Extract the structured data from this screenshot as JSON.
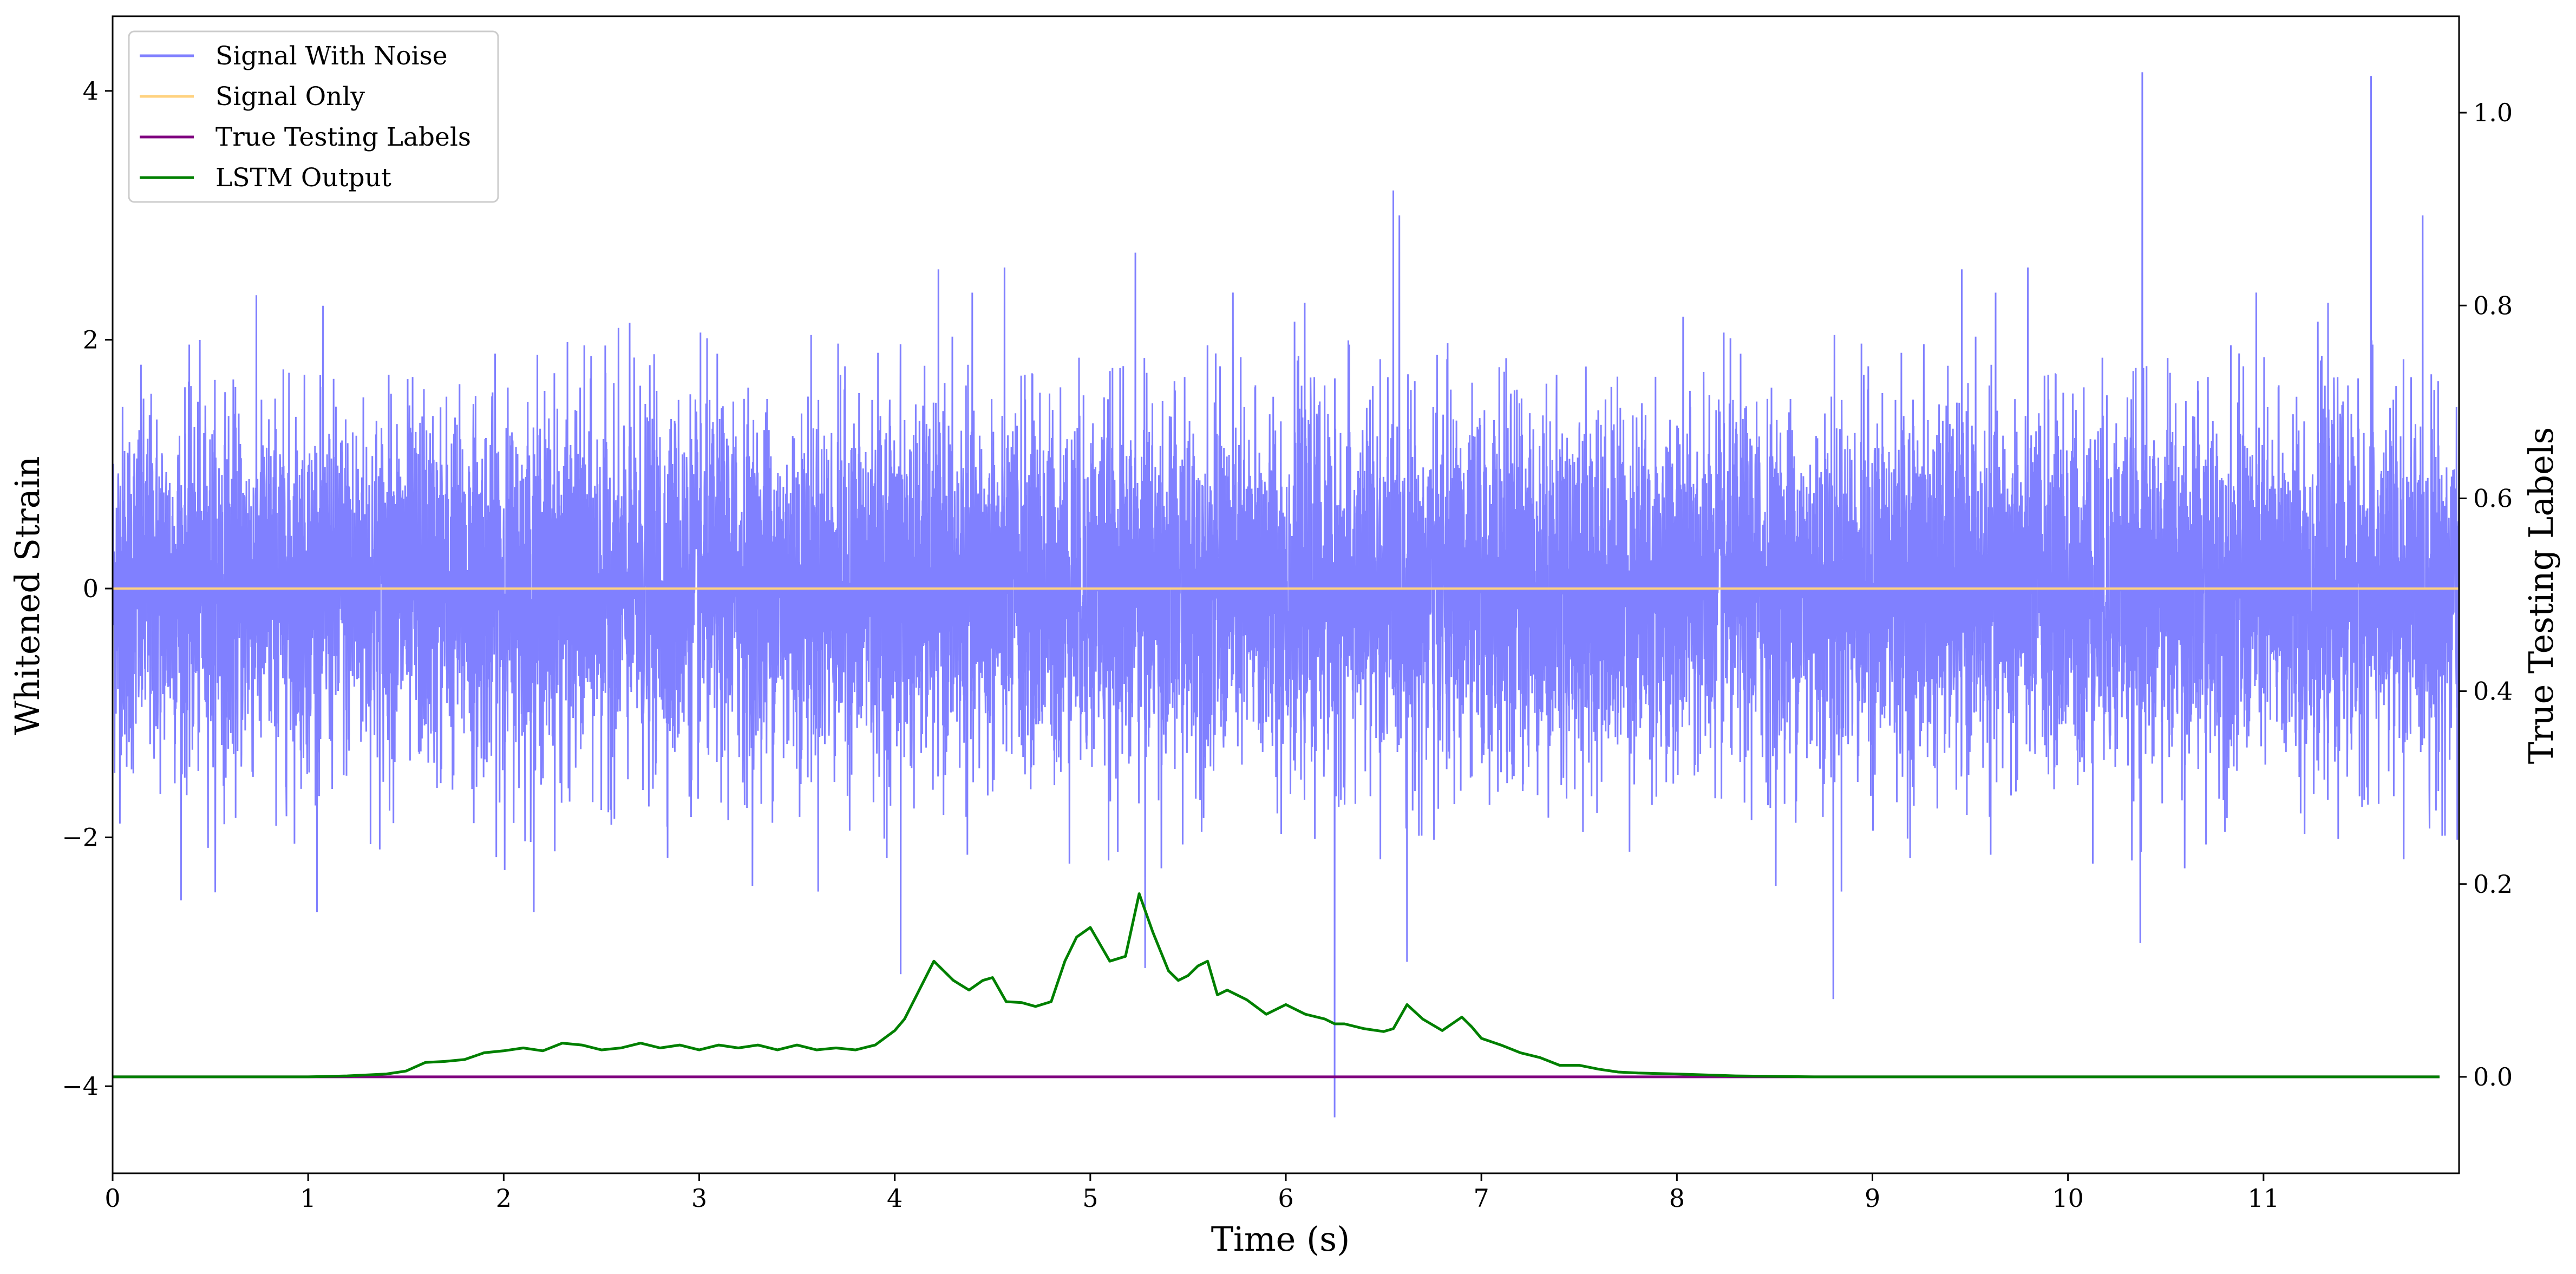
{
  "chart_data": {
    "type": "line",
    "xlabel": "Time (s)",
    "ylabel_left": "Whitened Strain",
    "ylabel_right": "True Testing Labels",
    "xlim": [
      0,
      12
    ],
    "ylim_left": [
      -4.7,
      4.6
    ],
    "ylim_right": [
      -0.1,
      1.1
    ],
    "x_ticks": [
      0,
      1,
      2,
      3,
      4,
      5,
      6,
      7,
      8,
      9,
      10,
      11
    ],
    "y_ticks_left": [
      4,
      2,
      0,
      -2,
      -4
    ],
    "y_ticks_right": [
      1.0,
      0.8,
      0.6,
      0.4,
      0.2,
      0.0
    ],
    "legend_position": "top-left",
    "grid": false,
    "legend": [
      {
        "name": "Signal With Noise",
        "color": "#8080ff"
      },
      {
        "name": "Signal Only",
        "color": "#ffd27f"
      },
      {
        "name": "True Testing Labels",
        "color": "#800080"
      },
      {
        "name": "LSTM Output",
        "color": "#008000"
      }
    ],
    "series": [
      {
        "name": "Signal With Noise",
        "axis": "left",
        "color": "#8080ff",
        "description_stats": {
          "mean": 0,
          "std": 0.72,
          "x_start": 0,
          "x_end": 12
        },
        "notable_extremes": [
          {
            "x": 10.38,
            "y": 4.15
          },
          {
            "x": 11.55,
            "y": 4.12
          },
          {
            "x": 6.55,
            "y": 3.2
          },
          {
            "x": 5.23,
            "y": 2.7
          },
          {
            "x": 6.25,
            "y": -4.25
          },
          {
            "x": 8.8,
            "y": -3.3
          },
          {
            "x": 4.03,
            "y": -3.1
          },
          {
            "x": 5.28,
            "y": -3.05
          },
          {
            "x": 6.62,
            "y": -3.0
          },
          {
            "x": 10.37,
            "y": -2.85
          }
        ]
      },
      {
        "name": "Signal Only",
        "axis": "left",
        "color": "#ffd27f",
        "x": [
          0,
          12
        ],
        "values": [
          0,
          0
        ]
      },
      {
        "name": "True Testing Labels",
        "axis": "right",
        "color": "#800080",
        "x": [
          0,
          11.9
        ],
        "values": [
          0,
          0
        ]
      },
      {
        "name": "LSTM Output",
        "axis": "right",
        "color": "#008000",
        "x": [
          0,
          0.8,
          1.0,
          1.2,
          1.4,
          1.5,
          1.6,
          1.7,
          1.8,
          1.9,
          2.0,
          2.1,
          2.2,
          2.3,
          2.4,
          2.5,
          2.6,
          2.7,
          2.8,
          2.9,
          3.0,
          3.1,
          3.2,
          3.3,
          3.4,
          3.5,
          3.6,
          3.7,
          3.8,
          3.9,
          4.0,
          4.05,
          4.1,
          4.2,
          4.3,
          4.38,
          4.45,
          4.5,
          4.57,
          4.65,
          4.72,
          4.8,
          4.87,
          4.93,
          5.0,
          5.1,
          5.18,
          5.25,
          5.32,
          5.4,
          5.45,
          5.5,
          5.55,
          5.6,
          5.65,
          5.7,
          5.8,
          5.9,
          6.0,
          6.1,
          6.2,
          6.25,
          6.3,
          6.4,
          6.5,
          6.55,
          6.62,
          6.7,
          6.8,
          6.9,
          6.95,
          7.0,
          7.1,
          7.2,
          7.3,
          7.4,
          7.5,
          7.6,
          7.7,
          7.8,
          8.0,
          8.3,
          8.7,
          9.0,
          10.0,
          11.0,
          11.9
        ],
        "values": [
          0.0,
          0.0,
          0.0,
          0.001,
          0.003,
          0.006,
          0.015,
          0.016,
          0.018,
          0.025,
          0.027,
          0.03,
          0.027,
          0.035,
          0.033,
          0.028,
          0.03,
          0.035,
          0.03,
          0.033,
          0.028,
          0.033,
          0.03,
          0.033,
          0.028,
          0.033,
          0.028,
          0.03,
          0.028,
          0.033,
          0.048,
          0.06,
          0.08,
          0.12,
          0.1,
          0.09,
          0.1,
          0.103,
          0.078,
          0.077,
          0.073,
          0.078,
          0.12,
          0.145,
          0.155,
          0.12,
          0.125,
          0.19,
          0.15,
          0.11,
          0.1,
          0.105,
          0.115,
          0.12,
          0.085,
          0.09,
          0.08,
          0.065,
          0.075,
          0.065,
          0.06,
          0.055,
          0.055,
          0.05,
          0.047,
          0.05,
          0.075,
          0.06,
          0.048,
          0.062,
          0.052,
          0.04,
          0.033,
          0.025,
          0.02,
          0.012,
          0.012,
          0.008,
          0.005,
          0.004,
          0.003,
          0.001,
          0.0,
          0.0,
          0.0,
          0.0,
          0.0
        ]
      }
    ]
  }
}
